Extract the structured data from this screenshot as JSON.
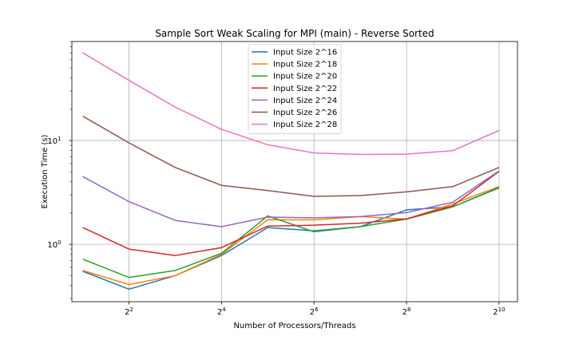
{
  "chart_data": {
    "type": "line",
    "title": "Sample Sort Weak Scaling for MPI (main) - Reverse Sorted",
    "xlabel": "Number of Processors/Threads",
    "ylabel": "Execution Time (s)",
    "xscale": "log2",
    "yscale": "log10",
    "xlim": [
      1.7,
      1350
    ],
    "ylim": [
      0.28,
      90
    ],
    "grid": true,
    "legend_position": "top-center",
    "x_ticks": [
      {
        "value": 4,
        "base": "2",
        "exp": "2"
      },
      {
        "value": 16,
        "base": "2",
        "exp": "4"
      },
      {
        "value": 64,
        "base": "2",
        "exp": "6"
      },
      {
        "value": 256,
        "base": "2",
        "exp": "8"
      },
      {
        "value": 1024,
        "base": "2",
        "exp": "10"
      }
    ],
    "y_ticks": [
      {
        "value": 1,
        "base": "10",
        "exp": "0"
      },
      {
        "value": 10,
        "base": "10",
        "exp": "1"
      }
    ],
    "x": [
      2,
      4,
      8,
      16,
      32,
      64,
      128,
      256,
      512,
      1024
    ],
    "series": [
      {
        "name": "Input Size 2^16",
        "color": "#1f77b4",
        "values": [
          0.55,
          0.37,
          0.5,
          0.78,
          1.45,
          1.35,
          1.48,
          2.15,
          2.3,
          3.5
        ]
      },
      {
        "name": "Input Size 2^18",
        "color": "#ff7f0e",
        "values": [
          0.56,
          0.41,
          0.5,
          0.8,
          1.73,
          1.72,
          1.85,
          1.75,
          2.45,
          3.6
        ]
      },
      {
        "name": "Input Size 2^20",
        "color": "#2ca02c",
        "values": [
          0.72,
          0.48,
          0.56,
          0.82,
          1.88,
          1.32,
          1.48,
          1.75,
          2.3,
          3.52
        ]
      },
      {
        "name": "Input Size 2^22",
        "color": "#d62728",
        "values": [
          1.45,
          0.9,
          0.78,
          0.93,
          1.5,
          1.53,
          1.6,
          1.76,
          2.35,
          5.05
        ]
      },
      {
        "name": "Input Size 2^24",
        "color": "#9467bd",
        "values": [
          4.5,
          2.58,
          1.7,
          1.48,
          1.83,
          1.8,
          1.85,
          2.02,
          2.55,
          5.1
        ]
      },
      {
        "name": "Input Size 2^26",
        "color": "#8c564b",
        "values": [
          17.2,
          9.5,
          5.5,
          3.7,
          3.3,
          2.9,
          2.95,
          3.2,
          3.6,
          5.5
        ]
      },
      {
        "name": "Input Size 2^28",
        "color": "#e377c2",
        "values": [
          70,
          38,
          21,
          12.8,
          9.1,
          7.6,
          7.35,
          7.4,
          8.0,
          12.5
        ]
      }
    ]
  }
}
